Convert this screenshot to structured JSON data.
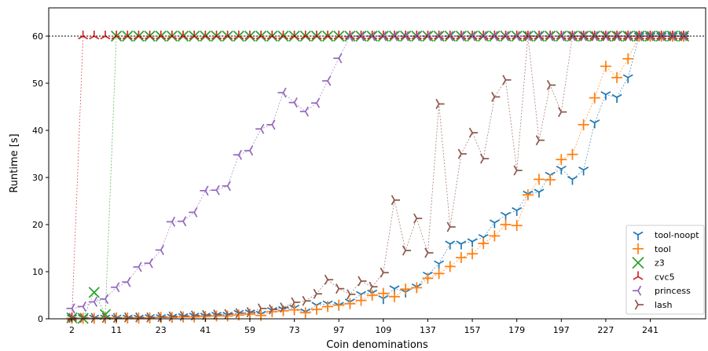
{
  "chart_data": {
    "type": "scatter",
    "xlabel": "Coin denominations",
    "ylabel": "Runtime [s]",
    "ylim": [
      0,
      66
    ],
    "yticks": [
      0,
      10,
      20,
      30,
      40,
      50,
      60
    ],
    "xtick_labels": [
      "2",
      "11",
      "23",
      "41",
      "59",
      "73",
      "97",
      "109",
      "137",
      "157",
      "179",
      "197",
      "227",
      "241"
    ],
    "categories": [
      "2",
      "3",
      "5",
      "7",
      "11",
      "13",
      "17",
      "19",
      "23",
      "29",
      "31",
      "37",
      "41",
      "43",
      "47",
      "53",
      "59",
      "61",
      "67",
      "71",
      "73",
      "79",
      "83",
      "89",
      "97",
      "101",
      "103",
      "107",
      "109",
      "113",
      "127",
      "131",
      "137",
      "139",
      "149",
      "151",
      "157",
      "163",
      "167",
      "173",
      "179",
      "181",
      "191",
      "193",
      "197",
      "199",
      "211",
      "223",
      "227",
      "229",
      "233",
      "239",
      "241",
      "251",
      "257",
      "263"
    ],
    "timeout_line": 60,
    "grid": false,
    "legend_position": "lower-right",
    "series": [
      {
        "name": "tool-noopt",
        "color": "#1f77b4",
        "marker": "tri_down",
        "values": [
          0.2,
          0.2,
          0.2,
          0.2,
          0.2,
          0.2,
          0.2,
          0.3,
          0.3,
          0.4,
          0.5,
          0.6,
          0.6,
          0.8,
          0.8,
          1.2,
          1.3,
          1.0,
          1.8,
          2.0,
          2.3,
          1.5,
          2.9,
          3.2,
          2.9,
          3.6,
          5.2,
          5.5,
          4.3,
          6.4,
          5.7,
          6.8,
          9.3,
          11.7,
          15.9,
          15.9,
          16.4,
          17.3,
          20.4,
          22.0,
          23.0,
          26.5,
          26.9,
          30.5,
          31.8,
          29.6,
          31.6,
          41.6,
          47.6,
          47.0,
          51.2,
          60,
          60,
          60,
          60,
          60
        ]
      },
      {
        "name": "tool",
        "color": "#ff7f0e",
        "marker": "plus",
        "values": [
          0.1,
          0.1,
          0.1,
          0.2,
          0.2,
          0.2,
          0.2,
          0.2,
          0.3,
          0.3,
          0.4,
          0.4,
          0.5,
          0.6,
          0.6,
          0.8,
          1.0,
          0.7,
          1.5,
          1.7,
          1.9,
          1.3,
          2.0,
          2.6,
          2.9,
          3.2,
          3.9,
          5.0,
          5.4,
          4.7,
          6.3,
          6.6,
          8.6,
          9.6,
          11.1,
          13.0,
          13.8,
          16.0,
          17.6,
          20.0,
          19.8,
          26.3,
          29.6,
          29.5,
          33.8,
          34.9,
          41.2,
          46.9,
          53.6,
          51.2,
          55.2,
          60,
          60,
          60,
          60,
          60
        ]
      },
      {
        "name": "z3",
        "color": "#2ca02c",
        "marker": "x",
        "values": [
          0.2,
          0.1,
          5.6,
          0.9,
          60,
          60,
          60,
          60,
          60,
          60,
          60,
          60,
          60,
          60,
          60,
          60,
          60,
          60,
          60,
          60,
          60,
          60,
          60,
          60,
          60,
          60,
          60,
          60,
          60,
          60,
          60,
          60,
          60,
          60,
          60,
          60,
          60,
          60,
          60,
          60,
          60,
          60,
          60,
          60,
          60,
          60,
          60,
          60,
          60,
          60,
          60,
          60,
          60,
          60,
          60,
          60
        ]
      },
      {
        "name": "cvc5",
        "color": "#d62728",
        "marker": "tri_up",
        "values": [
          0.2,
          60,
          60,
          60,
          60,
          60,
          60,
          60,
          60,
          60,
          60,
          60,
          60,
          60,
          60,
          60,
          60,
          60,
          60,
          60,
          60,
          60,
          60,
          60,
          60,
          60,
          60,
          60,
          60,
          60,
          60,
          60,
          60,
          60,
          60,
          60,
          60,
          60,
          60,
          60,
          60,
          60,
          60,
          60,
          60,
          60,
          60,
          60,
          60,
          60,
          60,
          60,
          60,
          60,
          60,
          60
        ]
      },
      {
        "name": "princess",
        "color": "#9467bd",
        "marker": "tri_left",
        "values": [
          2.2,
          2.6,
          3.6,
          4.2,
          6.7,
          7.8,
          11.0,
          11.8,
          14.6,
          20.6,
          20.7,
          22.6,
          27.2,
          27.3,
          28.2,
          34.8,
          35.7,
          40.3,
          41.2,
          48.0,
          45.9,
          44.0,
          45.8,
          50.5,
          55.3,
          59.9,
          60,
          60,
          60,
          60,
          60,
          60,
          60,
          60,
          60,
          60,
          60,
          60,
          60,
          60,
          60,
          60,
          60,
          60,
          60,
          60,
          60,
          60,
          60,
          60,
          60,
          60,
          60,
          60,
          60,
          60
        ]
      },
      {
        "name": "lash",
        "color": "#8c564b",
        "marker": "tri_right",
        "values": [
          0.2,
          0.2,
          0.2,
          0.2,
          0.2,
          0.3,
          0.3,
          0.3,
          0.4,
          0.5,
          0.6,
          0.7,
          0.8,
          0.9,
          1.0,
          1.2,
          1.4,
          2.2,
          2.0,
          2.4,
          3.5,
          3.8,
          5.3,
          8.3,
          6.4,
          5.2,
          8.0,
          6.8,
          9.8,
          25.2,
          14.5,
          21.3,
          14.0,
          45.6,
          19.5,
          35.0,
          39.5,
          34.0,
          47.1,
          50.7,
          31.5,
          60,
          37.9,
          49.6,
          43.9,
          60,
          60,
          60,
          60,
          60,
          60,
          60,
          60,
          60,
          60,
          60
        ]
      }
    ]
  }
}
